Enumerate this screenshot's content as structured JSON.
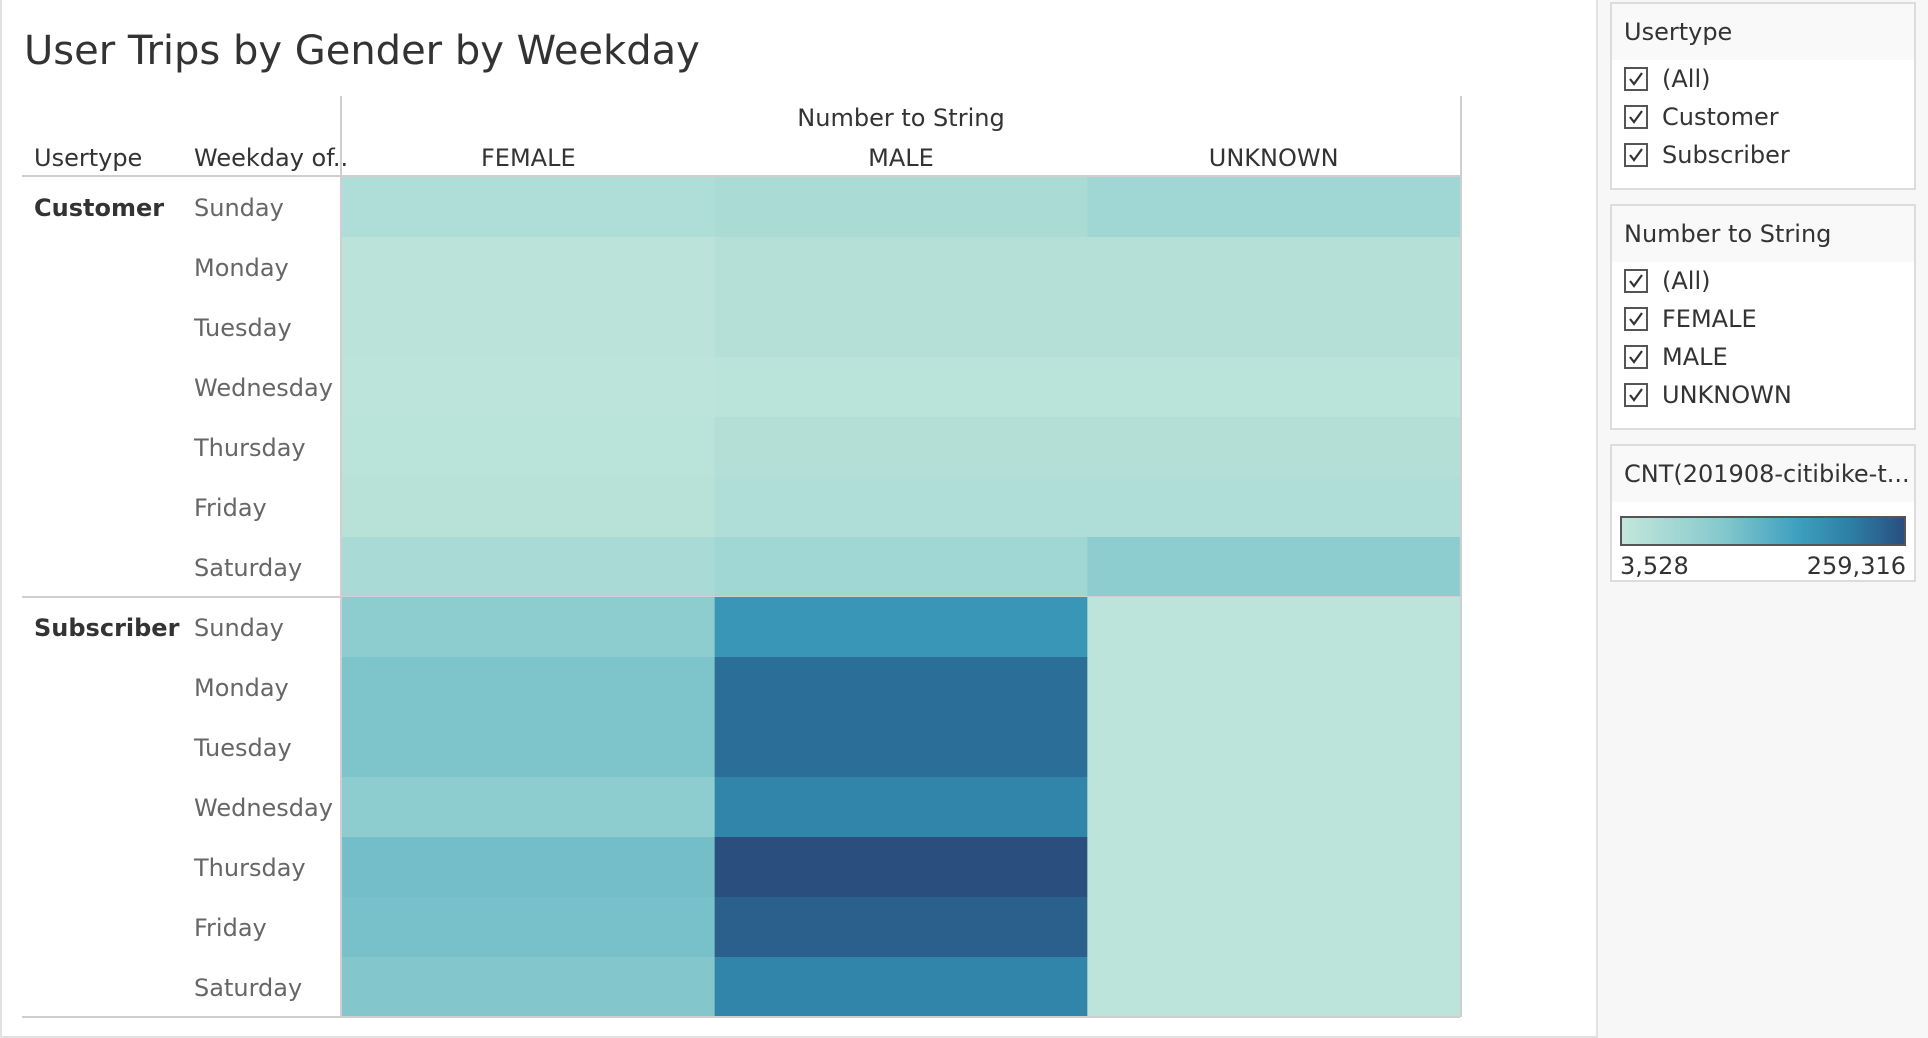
{
  "chart_data": {
    "type": "heatmap",
    "title": "User Trips by Gender by Weekday",
    "column_group_label": "Number to String",
    "row_header_labels": [
      "Usertype",
      "Weekday of.."
    ],
    "columns": [
      "FEMALE",
      "MALE",
      "UNKNOWN"
    ],
    "groups": [
      {
        "name": "Customer",
        "rows": [
          "Sunday",
          "Monday",
          "Tuesday",
          "Wednesday",
          "Thursday",
          "Friday",
          "Saturday"
        ],
        "values": [
          [
            24000,
            30000,
            40000
          ],
          [
            12000,
            18000,
            18000
          ],
          [
            11000,
            18000,
            18000
          ],
          [
            10000,
            13000,
            13000
          ],
          [
            13000,
            20000,
            20000
          ],
          [
            15000,
            24000,
            24000
          ],
          [
            31000,
            40000,
            60000
          ]
        ]
      },
      {
        "name": "Subscriber",
        "rows": [
          "Sunday",
          "Monday",
          "Tuesday",
          "Wednesday",
          "Thursday",
          "Friday",
          "Saturday"
        ],
        "values": [
          [
            60000,
            150000,
            10000
          ],
          [
            75000,
            215000,
            10000
          ],
          [
            75000,
            215000,
            10000
          ],
          [
            60000,
            180000,
            10000
          ],
          [
            85000,
            259316,
            10000
          ],
          [
            80000,
            235000,
            10000
          ],
          [
            70000,
            180000,
            10000
          ]
        ]
      }
    ],
    "color_range": [
      3528,
      259316
    ],
    "color_stops": [
      "#c3e7db",
      "#86c9cd",
      "#3fa0bf",
      "#2c7da4",
      "#2a4f7e"
    ]
  },
  "filters": [
    {
      "title": "Usertype",
      "items": [
        "(All)",
        "Customer",
        "Subscriber"
      ]
    },
    {
      "title": "Number to String",
      "items": [
        "(All)",
        "FEMALE",
        "MALE",
        "UNKNOWN"
      ]
    }
  ],
  "legend": {
    "title": "CNT(201908-citibike-t...",
    "min_label": "3,528",
    "max_label": "259,316"
  }
}
